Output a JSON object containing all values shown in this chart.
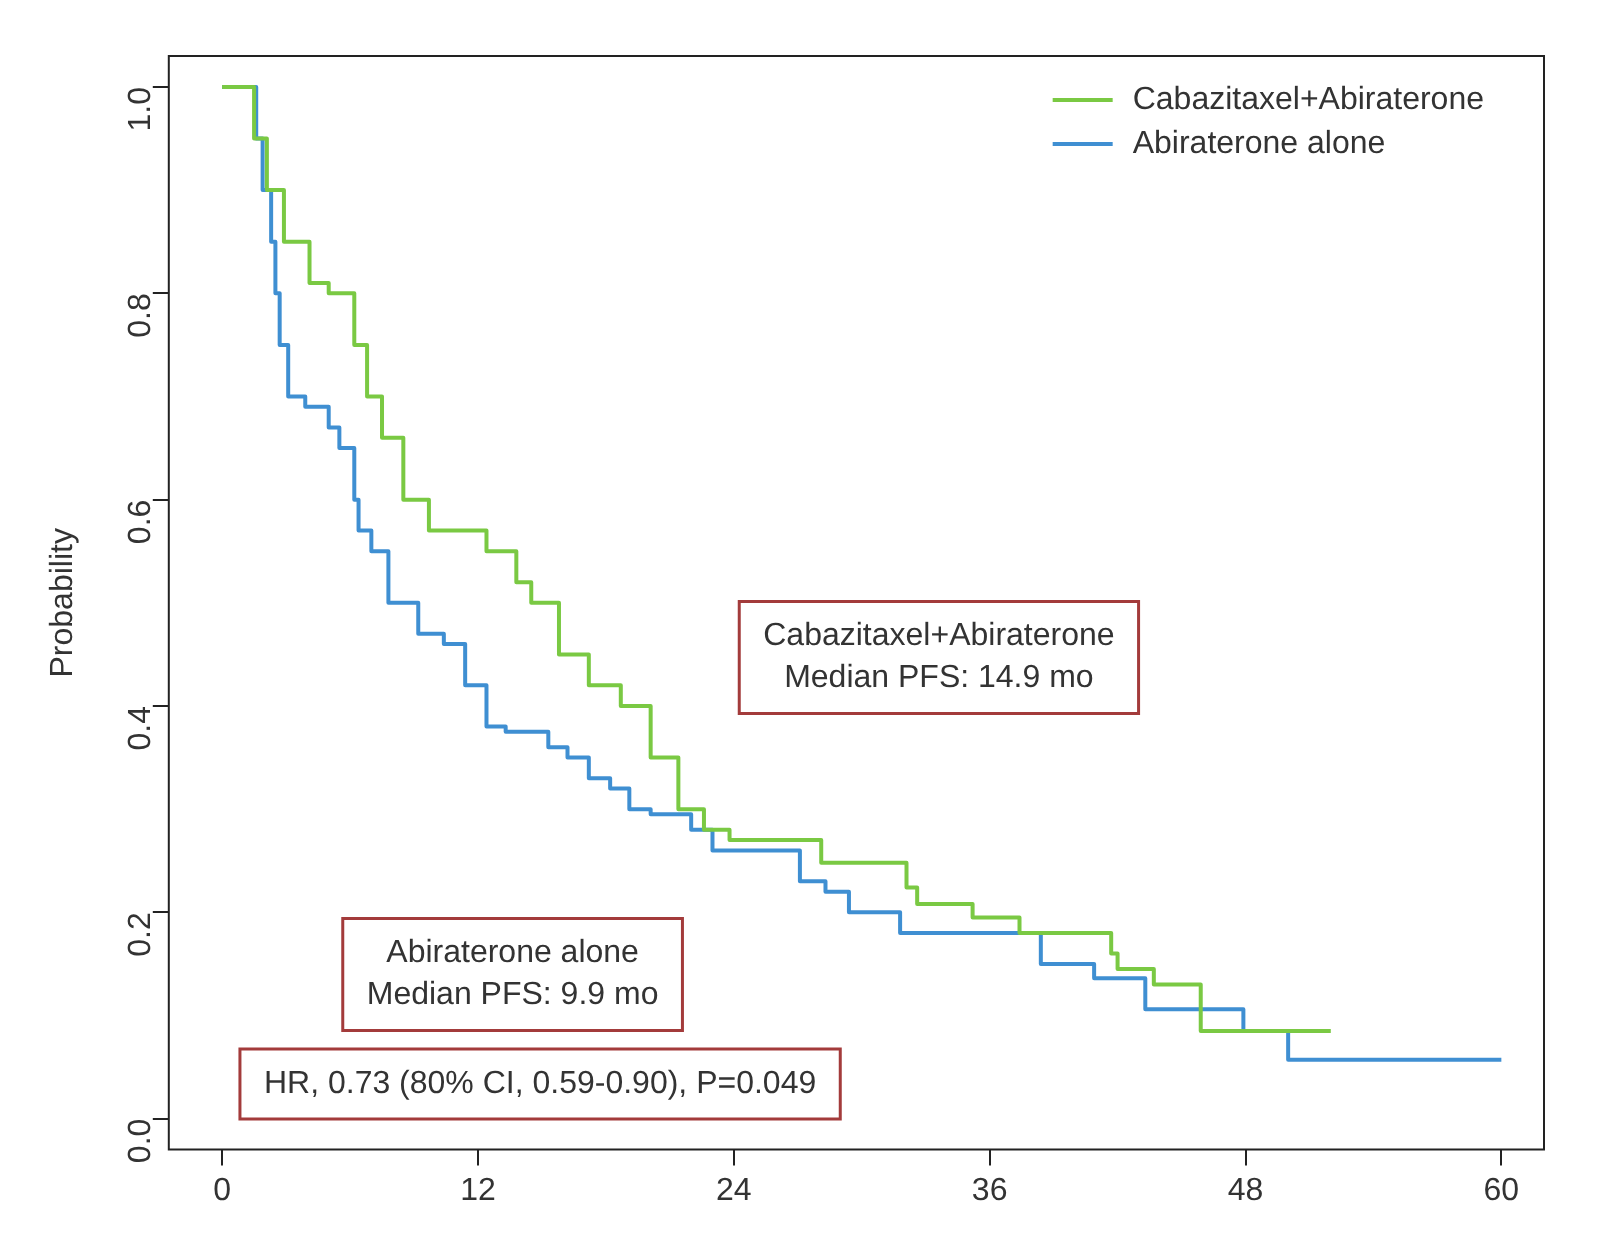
{
  "chart_data": {
    "type": "step",
    "ylabel": "Probability",
    "xlim": [
      -2.5,
      62
    ],
    "xticks": [
      0,
      12,
      24,
      36,
      48,
      60
    ],
    "ylim": [
      -0.03,
      1.03
    ],
    "yticks": [
      {
        "value": 0,
        "label": "0.0"
      },
      0.2,
      0.4,
      0.6,
      0.8,
      {
        "value": 1,
        "label": "1.0"
      }
    ],
    "grid": false,
    "legend": "top right",
    "marker": "none",
    "line_style": "solid",
    "series": [
      {
        "name": "Cabazitaxel+Abiraterone",
        "color": "#7ac943",
        "x": [
          0,
          1.5,
          2.1,
          2.9,
          4.1,
          5,
          6.2,
          6.8,
          7.5,
          8.5,
          9.7,
          10.5,
          12.4,
          13.8,
          14.5,
          15.8,
          17.2,
          18.7,
          20.1,
          21.4,
          22.6,
          23.8,
          28.1,
          32.1,
          32.6,
          35.2,
          37.4,
          41.7,
          42,
          43.7,
          45.9,
          52
        ],
        "values": [
          1,
          0.95,
          0.9,
          0.85,
          0.81,
          0.8,
          0.75,
          0.7,
          0.66,
          0.6,
          0.57,
          0.57,
          0.55,
          0.52,
          0.5,
          0.45,
          0.42,
          0.4,
          0.35,
          0.3,
          0.28,
          0.27,
          0.248,
          0.224,
          0.208,
          0.195,
          0.18,
          0.16,
          0.145,
          0.13,
          0.085,
          0.085
        ]
      },
      {
        "name": "Abiraterone alone",
        "color": "#3f8fd2",
        "x": [
          0,
          1.6,
          1.9,
          2.3,
          2.5,
          2.7,
          3.1,
          3.9,
          5,
          5.5,
          6.2,
          6.4,
          7,
          7.8,
          9.2,
          10.4,
          11.4,
          12.4,
          13.3,
          15.3,
          16.2,
          17.2,
          18.2,
          19.1,
          20.1,
          22,
          23,
          23.7,
          27.1,
          28.3,
          29.4,
          31.8,
          38.4,
          40.9,
          43.3,
          47.9,
          50,
          60
        ],
        "values": [
          1,
          0.95,
          0.9,
          0.85,
          0.8,
          0.75,
          0.7,
          0.69,
          0.67,
          0.65,
          0.6,
          0.57,
          0.55,
          0.5,
          0.47,
          0.46,
          0.42,
          0.38,
          0.375,
          0.36,
          0.35,
          0.33,
          0.32,
          0.3,
          0.295,
          0.28,
          0.26,
          0.26,
          0.23,
          0.22,
          0.2,
          0.18,
          0.15,
          0.136,
          0.106,
          0.085,
          0.057,
          0.057
        ]
      }
    ],
    "annotations": [
      "Cabazitaxel+Abiraterone\nMedian PFS: 14.9 mo",
      "Abiraterone alone\nMedian PFS: 9.9 mo",
      "HR, 0.73 (80% CI, 0.59-0.90), P=0.049"
    ]
  }
}
